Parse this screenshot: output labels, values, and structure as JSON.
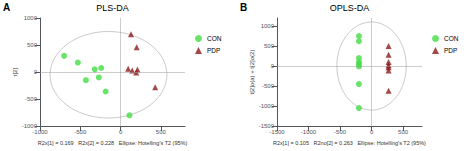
{
  "chart_data": [
    {
      "type": "scatter",
      "title": "PLS-DA",
      "panel_label": "A",
      "xlabel": "R2x[1] = 0.169   R2x[2] = 0.228   Ellipse: Hotelling's T2 (95%)",
      "ylabel": "t[2]",
      "xlim": [
        -1000,
        800
      ],
      "ylim": [
        -1000,
        1000
      ],
      "xticks": [
        -1000,
        -500,
        0,
        500
      ],
      "yticks": [
        -1000,
        -500,
        0,
        500,
        1000
      ],
      "grid": false,
      "legend": "right",
      "hlines": [
        0
      ],
      "vlines": [
        0
      ],
      "ellipse": {
        "cx": -150,
        "cy": -50,
        "width": 1450,
        "height": 1600,
        "color": "#bbbbbb"
      },
      "series": [
        {
          "name": "CON",
          "color": "#44dd44",
          "marker": "circle",
          "values": [
            [
              -700,
              300
            ],
            [
              -530,
              175
            ],
            [
              -430,
              -150
            ],
            [
              -320,
              50
            ],
            [
              -270,
              -100
            ],
            [
              -240,
              75
            ],
            [
              -185,
              -360
            ],
            [
              110,
              -800
            ]
          ]
        },
        {
          "name": "PDP",
          "color": "#8b1a1a",
          "marker": "triangle",
          "values": [
            [
              130,
              700
            ],
            [
              200,
              460
            ],
            [
              95,
              60
            ],
            [
              145,
              30
            ],
            [
              195,
              -10
            ],
            [
              210,
              45
            ],
            [
              430,
              -280
            ]
          ]
        }
      ]
    },
    {
      "type": "scatter",
      "title": "OPLS-DA",
      "panel_label": "B",
      "xlabel": "R2x[1] = 0.105   R2no[2] = 0.263   Ellipse: Hotelling's T2 (95%)",
      "ylabel": "t[2]o(a) + t[2]o(2)",
      "xlim": [
        -1500,
        800
      ],
      "ylim": [
        -1500,
        1200
      ],
      "xticks": [
        -1500,
        -1000,
        -500,
        0,
        500
      ],
      "yticks": [
        -1500,
        -1000,
        -500,
        0,
        500,
        1000
      ],
      "grid": false,
      "legend": "right",
      "hlines": [
        0
      ],
      "vlines": [
        0
      ],
      "ellipse": {
        "cx": 0,
        "cy": 0,
        "width": 1100,
        "height": 2200,
        "color": "#bbbbbb"
      },
      "series": [
        {
          "name": "CON",
          "color": "#44dd44",
          "marker": "circle",
          "values": [
            [
              -200,
              750
            ],
            [
              -200,
              620
            ],
            [
              -200,
              200
            ],
            [
              -200,
              100
            ],
            [
              -200,
              50
            ],
            [
              -200,
              -10
            ],
            [
              -200,
              -450
            ],
            [
              -200,
              -1050
            ]
          ]
        },
        {
          "name": "PDP",
          "color": "#8b1a1a",
          "marker": "triangle",
          "values": [
            [
              270,
              500
            ],
            [
              270,
              280
            ],
            [
              270,
              100
            ],
            [
              270,
              20
            ],
            [
              270,
              -30
            ],
            [
              270,
              -110
            ],
            [
              270,
              -620
            ]
          ]
        }
      ]
    }
  ]
}
